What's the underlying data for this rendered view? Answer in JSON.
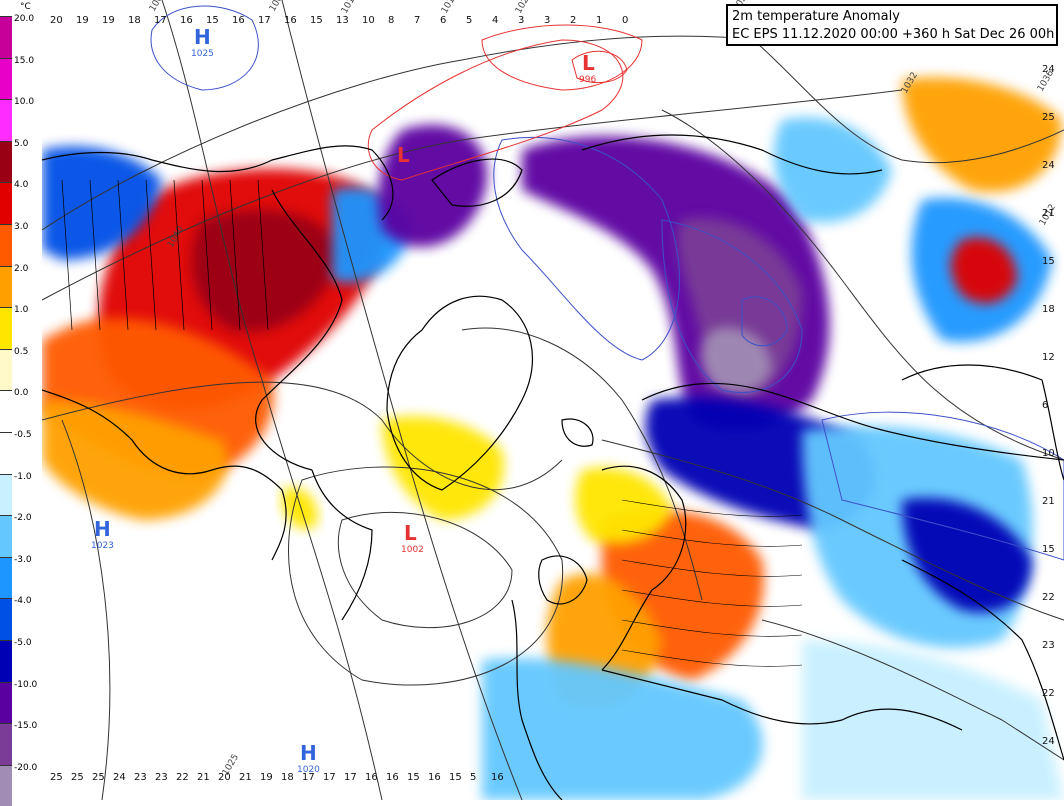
{
  "title": {
    "line1": "2m temperature Anomaly",
    "line2": "EC EPS 11.12.2020 00:00 +360 h Sat Dec 26 00h"
  },
  "legend": {
    "unit": "°C",
    "items": [
      {
        "label": "20.0",
        "color": "#c8009a"
      },
      {
        "label": "15.0",
        "color": "#e800c8"
      },
      {
        "label": "10.0",
        "color": "#ff2cff"
      },
      {
        "label": "5.0",
        "color": "#9a0014"
      },
      {
        "label": "4.0",
        "color": "#e00000"
      },
      {
        "label": "3.0",
        "color": "#ff5a00"
      },
      {
        "label": "2.0",
        "color": "#ffa000"
      },
      {
        "label": "1.0",
        "color": "#ffe600"
      },
      {
        "label": "0.5",
        "color": "#fff8c8"
      },
      {
        "label": "0.0",
        "color": "#ffffff"
      },
      {
        "label": "-0.5",
        "color": "#ffffff"
      },
      {
        "label": "-1.0",
        "color": "#c8f0ff"
      },
      {
        "label": "-2.0",
        "color": "#64c8ff"
      },
      {
        "label": "-3.0",
        "color": "#1e96ff"
      },
      {
        "label": "-4.0",
        "color": "#0050e6"
      },
      {
        "label": "-5.0",
        "color": "#0000b4"
      },
      {
        "label": "-10.0",
        "color": "#5a00a0"
      },
      {
        "label": "-15.0",
        "color": "#7a3c96"
      },
      {
        "label": "-20.0",
        "color": "#a08cb4"
      }
    ]
  },
  "pressure_centers": [
    {
      "type": "H",
      "value": "1025",
      "color": "#3264dc"
    },
    {
      "type": "L",
      "value": "996",
      "color": "#e63232"
    },
    {
      "type": "L",
      "value": "",
      "color": "#e63232"
    },
    {
      "type": "L",
      "value": "1002",
      "color": "#e63232"
    },
    {
      "type": "H",
      "value": "1023",
      "color": "#3264dc"
    },
    {
      "type": "H",
      "value": "1020",
      "color": "#3264dc"
    }
  ],
  "isobar_labels": [
    "1004",
    "1008",
    "1012",
    "1016",
    "1024",
    "1020",
    "1032",
    "1036",
    "1040",
    "1012",
    "1025"
  ],
  "grid_values": {
    "row_top_left": [
      "20",
      "19",
      "19",
      "18",
      "17",
      "16",
      "15",
      "16",
      "17",
      "16",
      "15",
      "13",
      "10",
      "8",
      "7",
      "6",
      "5",
      "4",
      "3",
      "3",
      "2",
      "1",
      "0"
    ],
    "row_bottom_left": [
      "25",
      "25",
      "25",
      "24",
      "23",
      "23",
      "22",
      "21",
      "20",
      "21",
      "19",
      "18",
      "17",
      "17",
      "17",
      "16",
      "16",
      "15",
      "16",
      "15",
      "5",
      "16"
    ],
    "right_edge": [
      "24",
      "25",
      "24",
      "21",
      "15",
      "18",
      "12",
      "6",
      "10",
      "21",
      "15",
      "22",
      "23",
      "22",
      "24"
    ]
  }
}
